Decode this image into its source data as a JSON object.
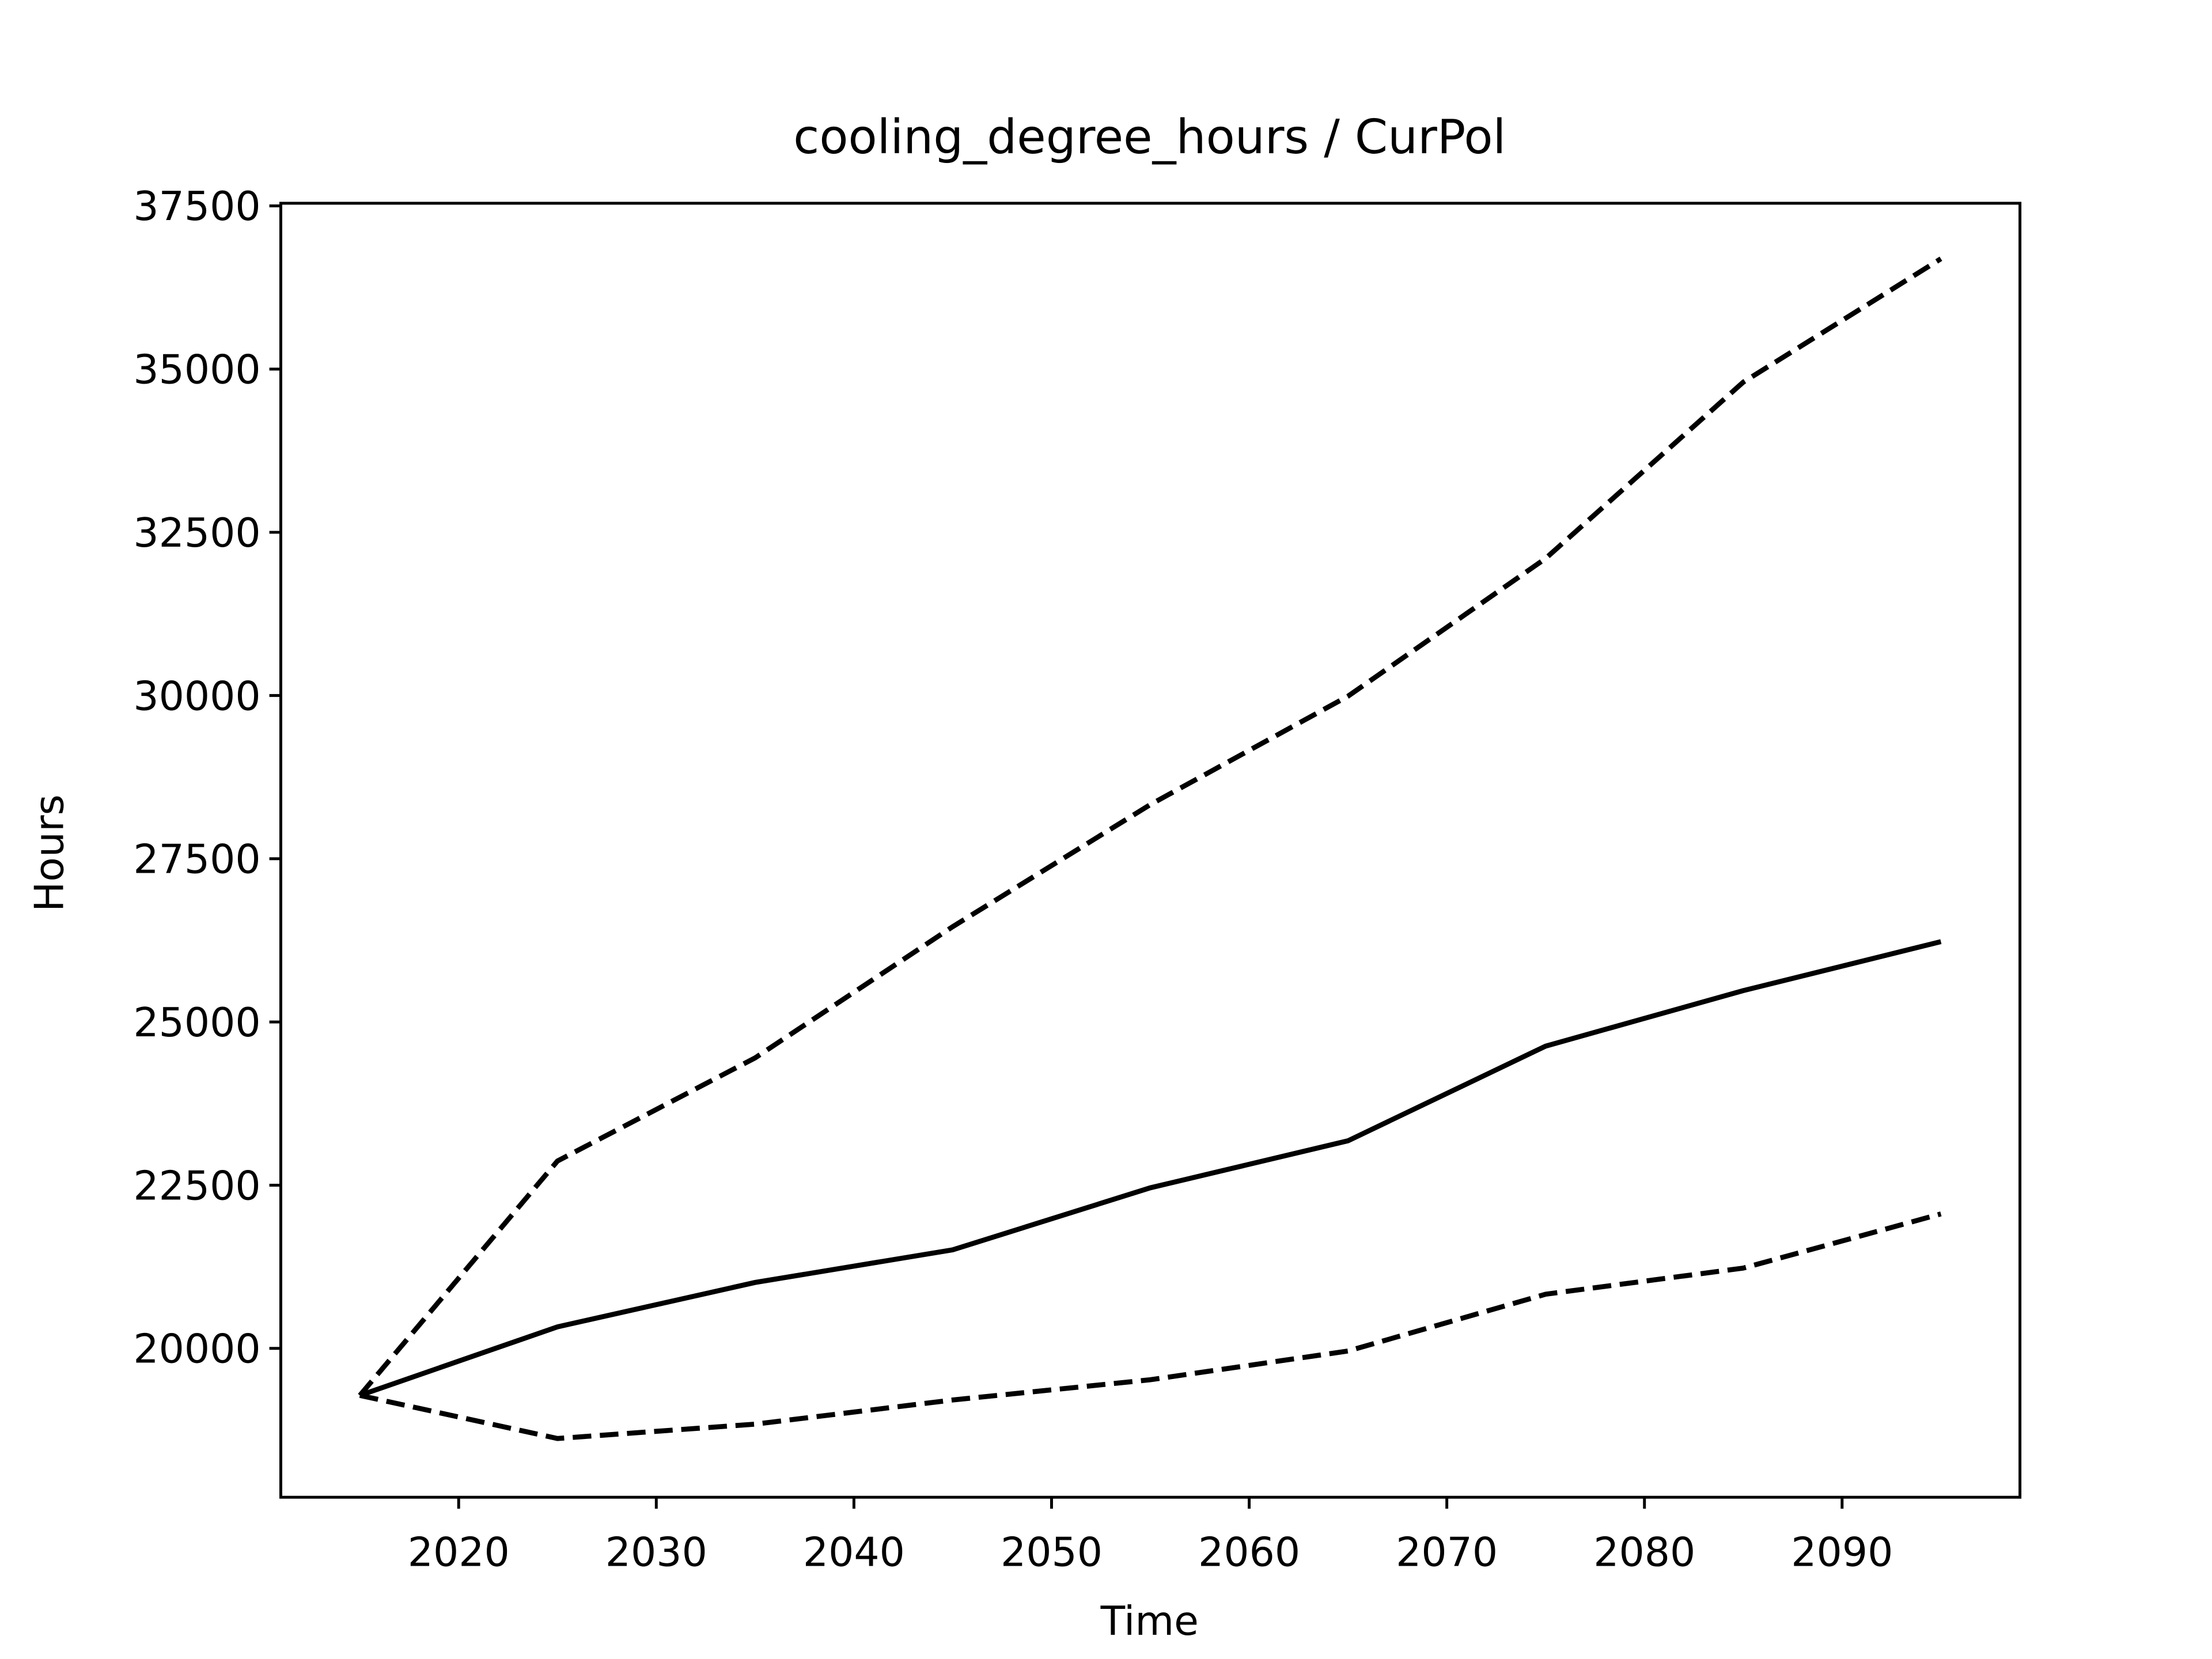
{
  "chart_data": {
    "type": "line",
    "title": "cooling_degree_hours / CurPol",
    "x_label": "Time",
    "y_label": "Hours",
    "x": [
      2015,
      2025,
      2035,
      2045,
      2055,
      2065,
      2075,
      2085,
      2095
    ],
    "series": [
      {
        "color": "#000000",
        "linestyle": "solid",
        "values": [
          19280,
          20330,
          21010,
          21510,
          22460,
          23180,
          24630,
          25480,
          26230
        ]
      },
      {
        "color": "#000000",
        "linestyle": "dashed",
        "values": [
          19280,
          22870,
          24450,
          26460,
          28330,
          29990,
          32100,
          34800,
          36690
        ]
      },
      {
        "color": "#000000",
        "linestyle": "dashed",
        "values": [
          19280,
          18620,
          18840,
          19210,
          19520,
          19960,
          20830,
          21230,
          22060
        ]
      }
    ],
    "xlim": [
      2011,
      2099
    ],
    "ylim": [
      17720,
      37540
    ],
    "xticks": [
      2020,
      2030,
      2040,
      2050,
      2060,
      2070,
      2080,
      2090
    ],
    "yticks": [
      20000,
      22500,
      25000,
      27500,
      30000,
      32500,
      35000,
      37500
    ],
    "grid": false
  }
}
